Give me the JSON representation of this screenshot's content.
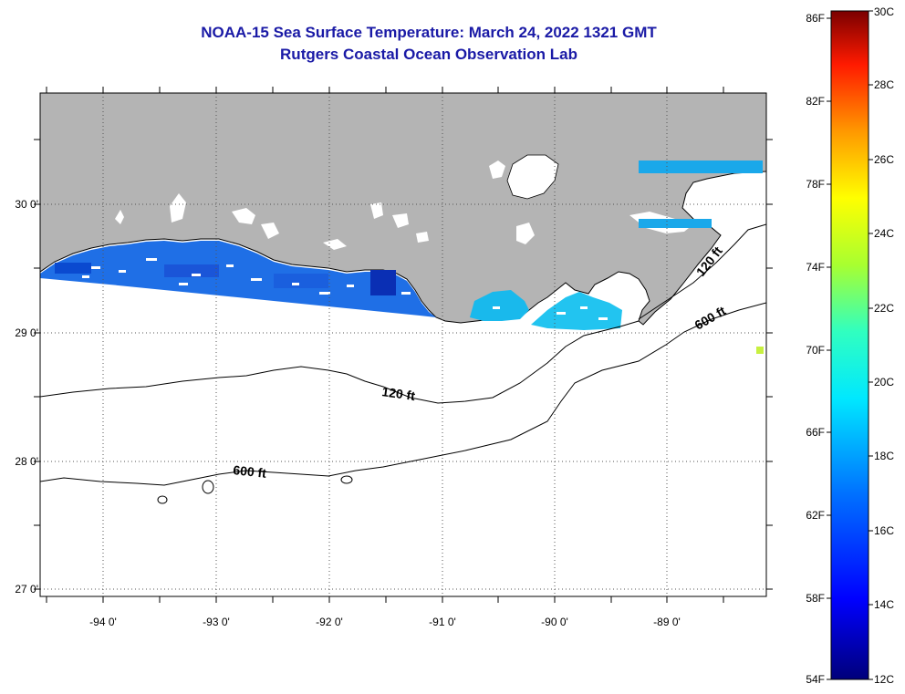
{
  "title": "NOAA-15 Sea Surface Temperature:  March 24, 2022 1321 GMT",
  "subtitle": "Rutgers Coastal Ocean Observation Lab",
  "map": {
    "lon_ticks": [
      "-94 0'",
      "-93 0'",
      "-92 0'",
      "-91 0'",
      "-90 0'",
      "-89 0'"
    ],
    "lat_ticks": [
      "30 0'",
      "29 0'",
      "28 0'",
      "27 0'"
    ],
    "contours": [
      {
        "label": "120 ft"
      },
      {
        "label": "600 ft"
      },
      {
        "label": "120 ft"
      },
      {
        "label": "600 ft"
      }
    ],
    "colors": {
      "land": "#b4b4b4",
      "ocean": "#ffffff",
      "grid": "#555555",
      "coast": "#000000"
    }
  },
  "colorbar": {
    "fahrenheit_labels": [
      "86F",
      "82F",
      "78F",
      "74F",
      "70F",
      "66F",
      "62F",
      "58F",
      "54F"
    ],
    "celsius_labels": [
      "30C",
      "28C",
      "26C",
      "24C",
      "22C",
      "20C",
      "18C",
      "16C",
      "14C",
      "12C"
    ],
    "range_celsius": [
      12,
      30
    ],
    "range_fahrenheit": [
      54,
      86
    ]
  }
}
